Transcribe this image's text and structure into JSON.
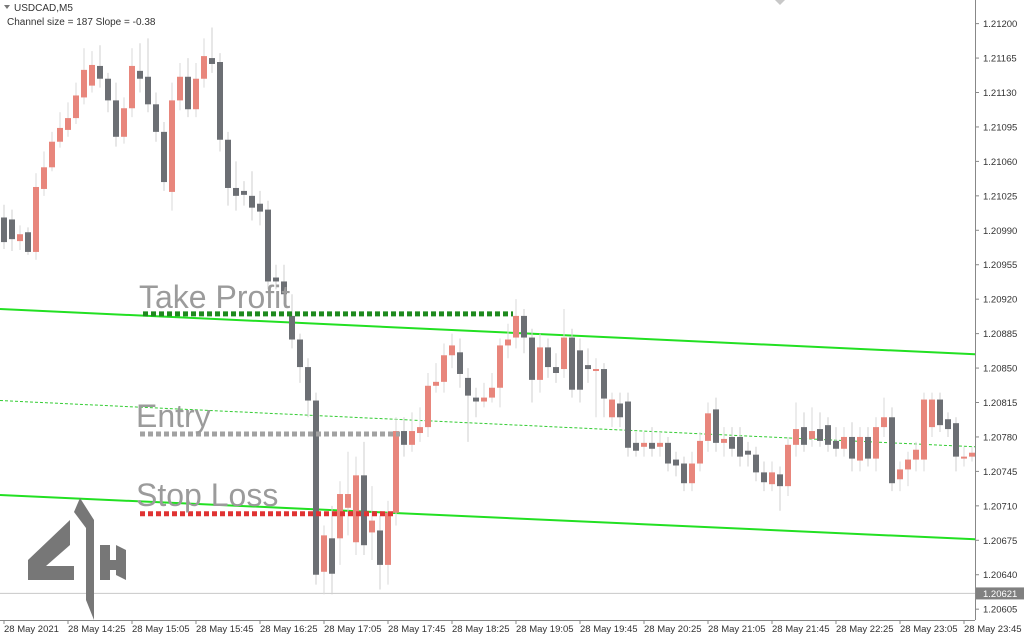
{
  "chart_data": {
    "type": "candlestick",
    "title": "USDCAD,M5",
    "subtitle": "Channel size = 187 Slope = -0.38",
    "up_color": "#e8867c",
    "down_color": "#6c6f74",
    "categories": [
      "28 May 2021",
      null,
      null,
      null,
      null,
      null,
      null,
      null,
      "28 May 14:25",
      null,
      null,
      null,
      null,
      null,
      null,
      null,
      "28 May 15:05",
      null,
      null,
      null,
      null,
      null,
      null,
      null,
      "28 May 15:45",
      null,
      null,
      null,
      null,
      null,
      null,
      null,
      "28 May 16:25",
      null,
      null,
      null,
      null,
      null,
      null,
      null,
      "28 May 17:05",
      null,
      null,
      null,
      null,
      null,
      null,
      null,
      "28 May 17:45",
      null,
      null,
      null,
      null,
      null,
      null,
      null,
      "28 May 18:25",
      null,
      null,
      null,
      null,
      null,
      null,
      null,
      "28 May 19:05",
      null,
      null,
      null,
      null,
      null,
      null,
      null,
      "28 May 19:45",
      null,
      null,
      null,
      null,
      null,
      null,
      null,
      "28 May 20:25",
      null,
      null,
      null,
      null,
      null,
      null,
      null,
      "28 May 21:05",
      null,
      null,
      null,
      null,
      null,
      null,
      null,
      "28 May 21:45",
      null,
      null,
      null,
      null,
      null,
      null,
      null,
      "28 May 22:25",
      null,
      null,
      null,
      null,
      null,
      null,
      null,
      "28 May 23:05",
      null,
      null,
      null,
      null,
      null,
      null,
      null,
      "28 May 23:45",
      null
    ],
    "open": [
      1.21003,
      1.21001,
      1.20979,
      1.20988,
      1.20968,
      1.21032,
      1.21054,
      1.2108,
      1.21092,
      1.21104,
      1.21125,
      1.21137,
      1.21157,
      1.21144,
      1.21122,
      1.21085,
      1.21114,
      1.21152,
      1.21146,
      1.21118,
      1.2109,
      1.21029,
      1.21122,
      1.21146,
      1.21113,
      1.21144,
      1.21165,
      1.21161,
      1.21082,
      1.21033,
      1.2103,
      1.21025,
      1.21017,
      1.21011,
      1.20942,
      1.20938,
      1.20903,
      1.20879,
      1.20851,
      1.20817,
      1.20643,
      1.20677,
      1.20677,
      1.20708,
      1.20673,
      1.20741,
      1.20683,
      1.20685,
      1.2065,
      1.20703,
      1.20786,
      1.20772,
      1.20784,
      1.2079,
      1.20832,
      1.20836,
      1.20863,
      1.20866,
      1.2084,
      1.2082,
      1.20816,
      1.2082,
      1.2083,
      1.20873,
      1.20881,
      1.20903,
      1.20881,
      1.20838,
      1.20871,
      1.20851,
      1.20849,
      1.20881,
      1.20868,
      1.20853,
      1.20847,
      1.20849,
      1.208,
      1.20814,
      1.20816,
      1.20774,
      1.2077,
      1.20774,
      1.2077,
      1.20774,
      1.20757,
      1.20753,
      1.20733,
      1.20753,
      1.20776,
      1.20808,
      1.20774,
      1.2078,
      1.2078,
      1.20766,
      1.20762,
      1.20744,
      1.20732,
      1.20742,
      1.2073,
      1.20772,
      1.2079,
      1.20778,
      1.20788,
      1.20792,
      1.20776,
      1.20768,
      1.2078,
      1.20756,
      1.2078,
      1.20758,
      1.2079,
      1.208,
      1.20737,
      1.20747,
      1.20757,
      1.20757,
      1.2079,
      1.20818,
      1.20798,
      1.20794,
      1.20758,
      1.2076
    ],
    "high": [
      1.21016,
      1.21011,
      1.20995,
      1.20993,
      1.21048,
      1.2107,
      1.2109,
      1.2111,
      1.2112,
      1.2114,
      1.21175,
      1.21172,
      1.21178,
      1.2115,
      1.2114,
      1.21125,
      1.21175,
      1.2118,
      1.21185,
      1.2113,
      1.211,
      1.2114,
      1.2116,
      1.21165,
      1.2116,
      1.21185,
      1.21196,
      1.2117,
      1.2109,
      1.2106,
      1.2104,
      1.2105,
      1.2103,
      1.2102,
      1.20955,
      1.20955,
      1.20925,
      1.20885,
      1.2086,
      1.20825,
      1.2069,
      1.2071,
      1.20735,
      1.20765,
      1.2076,
      1.20775,
      1.2073,
      1.207,
      1.20715,
      1.208,
      1.208,
      1.20805,
      1.2081,
      1.20845,
      1.20855,
      1.20875,
      1.20885,
      1.2088,
      1.2085,
      1.2083,
      1.20835,
      1.20845,
      1.2088,
      1.20895,
      1.2092,
      1.2091,
      1.2089,
      1.20885,
      1.2088,
      1.20865,
      1.2091,
      1.2089,
      1.2088,
      1.2087,
      1.2086,
      1.20855,
      1.20825,
      1.20825,
      1.20825,
      1.20785,
      1.20785,
      1.2079,
      1.20785,
      1.2078,
      1.20765,
      1.2076,
      1.20765,
      1.20785,
      1.20815,
      1.2082,
      1.2079,
      1.2079,
      1.2079,
      1.20775,
      1.2077,
      1.20755,
      1.20755,
      1.2075,
      1.2078,
      1.20815,
      1.20805,
      1.2081,
      1.20805,
      1.208,
      1.2079,
      1.2079,
      1.20795,
      1.2079,
      1.2079,
      1.208,
      1.2082,
      1.2081,
      1.20755,
      1.20765,
      1.20775,
      1.20825,
      1.20825,
      1.20825,
      1.20805,
      1.208,
      1.2077,
      1.2077
    ],
    "low": [
      1.20971,
      1.20969,
      1.2097,
      1.20965,
      1.2096,
      1.21025,
      1.2105,
      1.21074,
      1.21085,
      1.21098,
      1.21118,
      1.2113,
      1.21135,
      1.2111,
      1.21075,
      1.21078,
      1.21105,
      1.2113,
      1.2111,
      1.2108,
      1.2103,
      1.2101,
      1.21112,
      1.21105,
      1.21105,
      1.21135,
      1.2115,
      1.2107,
      1.21015,
      1.2101,
      1.21015,
      1.21,
      1.20995,
      1.2093,
      1.2093,
      1.20915,
      1.2087,
      1.20835,
      1.208,
      1.2063,
      1.2062,
      1.2062,
      1.2065,
      1.2068,
      1.2066,
      1.2066,
      1.20655,
      1.20625,
      1.2063,
      1.2069,
      1.2076,
      1.20765,
      1.20775,
      1.2078,
      1.20825,
      1.20825,
      1.2085,
      1.2083,
      1.20775,
      1.208,
      1.2081,
      1.20815,
      1.2081,
      1.2086,
      1.2087,
      1.20865,
      1.20815,
      1.20825,
      1.2084,
      1.20835,
      1.2084,
      1.2082,
      1.20815,
      1.20835,
      1.208,
      1.208,
      1.2079,
      1.2079,
      1.2076,
      1.2076,
      1.2076,
      1.2076,
      1.2076,
      1.20745,
      1.2074,
      1.20725,
      1.20725,
      1.20745,
      1.20765,
      1.20765,
      1.2076,
      1.2076,
      1.2075,
      1.2075,
      1.20735,
      1.20725,
      1.20725,
      1.20705,
      1.2072,
      1.2076,
      1.20765,
      1.2077,
      1.2077,
      1.20765,
      1.2076,
      1.2076,
      1.20745,
      1.20745,
      1.2075,
      1.20745,
      1.2078,
      1.20725,
      1.20725,
      1.2073,
      1.20745,
      1.20745,
      1.2078,
      1.20785,
      1.2078,
      1.20745,
      1.2075,
      1.20755
    ],
    "close": [
      1.20978,
      1.20981,
      1.20986,
      1.20968,
      1.21034,
      1.21054,
      1.2108,
      1.21094,
      1.21104,
      1.21127,
      1.21153,
      1.21158,
      1.21144,
      1.21122,
      1.21085,
      1.21114,
      1.21157,
      1.21144,
      1.21118,
      1.2109,
      1.21039,
      1.21122,
      1.21146,
      1.21113,
      1.21144,
      1.21167,
      1.21159,
      1.21082,
      1.21033,
      1.21025,
      1.21026,
      1.21013,
      1.21009,
      1.20938,
      1.20938,
      1.20925,
      1.20879,
      1.20851,
      1.20817,
      1.2064,
      1.2068,
      1.20641,
      1.20722,
      1.20722,
      1.20741,
      1.2067,
      1.20695,
      1.2065,
      1.20703,
      1.20786,
      1.20772,
      1.20786,
      1.2079,
      1.20832,
      1.20836,
      1.20863,
      1.20873,
      1.20844,
      1.20822,
      1.20816,
      1.2082,
      1.2083,
      1.20873,
      1.20879,
      1.20903,
      1.20881,
      1.20838,
      1.20871,
      1.20851,
      1.20845,
      1.20881,
      1.20828,
      1.20828,
      1.20849,
      1.20849,
      1.20819,
      1.20818,
      1.208,
      1.20769,
      1.20766,
      1.20774,
      1.20768,
      1.20774,
      1.20753,
      1.20751,
      1.20733,
      1.20753,
      1.20776,
      1.20804,
      1.20774,
      1.20778,
      1.20768,
      1.2076,
      1.20762,
      1.20744,
      1.20734,
      1.20744,
      1.2073,
      1.20772,
      1.20788,
      1.20772,
      1.20786,
      1.20776,
      1.20772,
      1.20768,
      1.2078,
      1.20758,
      1.2078,
      1.20758,
      1.2079,
      1.208,
      1.20733,
      1.20747,
      1.20757,
      1.20767,
      1.20818,
      1.20818,
      1.20792,
      1.20788,
      1.2076,
      1.2076,
      1.20764
    ],
    "ylim": [
      1.20594,
      1.21224
    ],
    "yticks": [
      {
        "value": 1.212,
        "label": "1.21200"
      },
      1.21165,
      {
        "value": 1.2113,
        "label": "1.21130"
      },
      1.21095,
      {
        "value": 1.2106,
        "label": "1.21060"
      },
      1.21025,
      {
        "value": 1.2099,
        "label": "1.20990"
      },
      1.20955,
      {
        "value": 1.2092,
        "label": "1.20920"
      },
      1.20885,
      {
        "value": 1.2085,
        "label": "1.20850"
      },
      1.20815,
      {
        "value": 1.2078,
        "label": "1.20780"
      },
      1.20745,
      {
        "value": 1.2071,
        "label": "1.20710"
      },
      1.20675,
      {
        "value": 1.2064,
        "label": "1.20640"
      },
      1.20605
    ],
    "current_price": 1.20621,
    "channel": [
      {
        "color": "#22e022",
        "style": "solid",
        "values": [
          1.2091,
          1.20864
        ]
      },
      {
        "color": "#33cc33",
        "style": "dotted",
        "values": [
          1.20817,
          1.2077
        ]
      },
      {
        "color": "#22e022",
        "style": "solid",
        "values": [
          1.20721,
          1.20676
        ]
      }
    ],
    "levels": [
      {
        "label": "Take Profit",
        "value": 1.20905,
        "color": "#1e8a1e"
      },
      {
        "label": "Entry",
        "value": 1.20783,
        "color": "#a2a2a2"
      },
      {
        "label": "Stop Loss",
        "value": 1.20702,
        "color": "#e03333"
      }
    ]
  }
}
